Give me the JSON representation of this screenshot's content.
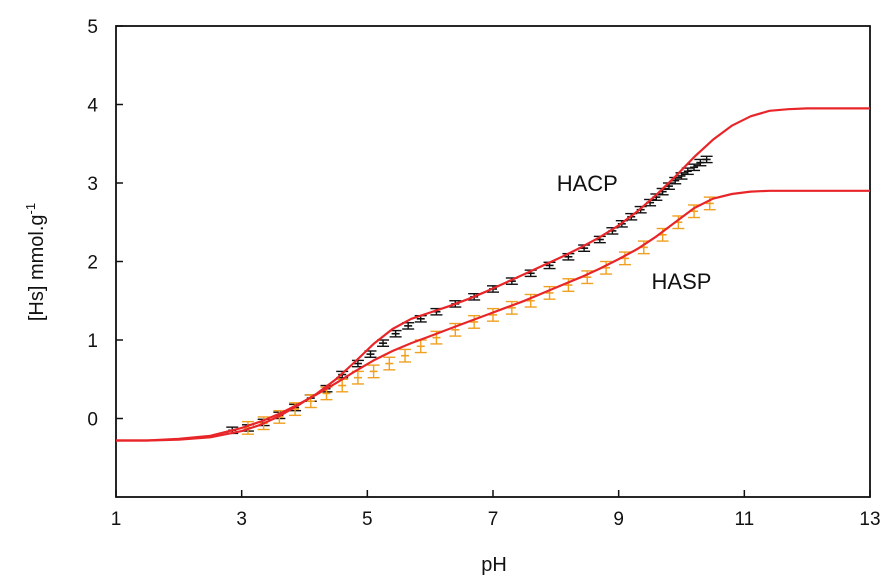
{
  "chart_data": {
    "type": "line",
    "title": "",
    "xlabel": "pH",
    "ylabel": "[Hs] mmol.g",
    "ylabel_superscript": "-1",
    "xlim": [
      1,
      13
    ],
    "ylim": [
      -1,
      5
    ],
    "xticks": [
      "1",
      "3",
      "5",
      "7",
      "9",
      "11",
      "13"
    ],
    "yticks": [
      "0",
      "1",
      "2",
      "3",
      "4",
      "5"
    ],
    "grid": false,
    "legend": "none",
    "annotations": [
      {
        "text": "HACP",
        "x": 8.5,
        "y": 3.0
      },
      {
        "text": "HASP",
        "x": 10.0,
        "y": 1.75
      }
    ],
    "colors": {
      "fit": "#e8262a",
      "hacp_data": "#111111",
      "hasp_data": "#f0a020",
      "axis": "#111111"
    },
    "series": [
      {
        "key": "hacp_fit",
        "kind": "line",
        "x": [
          1.0,
          1.5,
          2.0,
          2.5,
          3.0,
          3.3,
          3.6,
          3.9,
          4.2,
          4.5,
          4.8,
          5.1,
          5.4,
          5.7,
          6.0,
          6.3,
          6.6,
          6.9,
          7.2,
          7.5,
          7.8,
          8.1,
          8.4,
          8.7,
          9.0,
          9.3,
          9.6,
          9.9,
          10.2,
          10.5,
          10.8,
          11.1,
          11.4,
          11.7,
          12.0,
          12.5,
          13.0
        ],
        "y": [
          -0.28,
          -0.28,
          -0.27,
          -0.24,
          -0.16,
          -0.08,
          0.03,
          0.17,
          0.32,
          0.5,
          0.72,
          0.95,
          1.14,
          1.27,
          1.35,
          1.43,
          1.52,
          1.62,
          1.73,
          1.84,
          1.95,
          2.06,
          2.18,
          2.31,
          2.46,
          2.64,
          2.85,
          3.08,
          3.33,
          3.55,
          3.73,
          3.85,
          3.92,
          3.94,
          3.95,
          3.95,
          3.95
        ]
      },
      {
        "key": "hasp_fit",
        "kind": "line",
        "x": [
          1.0,
          1.5,
          2.0,
          2.5,
          3.0,
          3.3,
          3.6,
          3.9,
          4.2,
          4.5,
          4.8,
          5.1,
          5.4,
          5.7,
          6.0,
          6.3,
          6.6,
          6.9,
          7.2,
          7.5,
          7.8,
          8.1,
          8.4,
          8.7,
          9.0,
          9.3,
          9.6,
          9.9,
          10.2,
          10.5,
          10.8,
          11.1,
          11.4,
          11.7,
          12.0,
          12.5,
          13.0
        ],
        "y": [
          -0.28,
          -0.28,
          -0.26,
          -0.22,
          -0.12,
          -0.04,
          0.06,
          0.18,
          0.31,
          0.45,
          0.6,
          0.74,
          0.86,
          0.96,
          1.05,
          1.14,
          1.23,
          1.32,
          1.41,
          1.5,
          1.6,
          1.7,
          1.8,
          1.91,
          2.03,
          2.16,
          2.32,
          2.5,
          2.68,
          2.8,
          2.86,
          2.89,
          2.9,
          2.9,
          2.9,
          2.9,
          2.9
        ]
      },
      {
        "key": "hacp_data",
        "kind": "errorbars",
        "err": 0.04,
        "x": [
          2.85,
          3.1,
          3.35,
          3.6,
          3.85,
          4.1,
          4.35,
          4.6,
          4.85,
          5.05,
          5.25,
          5.45,
          5.65,
          5.85,
          6.1,
          6.4,
          6.7,
          7.0,
          7.3,
          7.6,
          7.9,
          8.2,
          8.45,
          8.7,
          8.9,
          9.05,
          9.2,
          9.35,
          9.5,
          9.6,
          9.7,
          9.8,
          9.9,
          10.0,
          10.1,
          10.2,
          10.3,
          10.4
        ],
        "y": [
          -0.15,
          -0.12,
          -0.05,
          0.04,
          0.14,
          0.26,
          0.38,
          0.56,
          0.7,
          0.82,
          0.96,
          1.08,
          1.18,
          1.27,
          1.36,
          1.46,
          1.55,
          1.65,
          1.75,
          1.85,
          1.95,
          2.06,
          2.17,
          2.28,
          2.39,
          2.48,
          2.57,
          2.66,
          2.75,
          2.82,
          2.89,
          2.96,
          3.03,
          3.09,
          3.15,
          3.2,
          3.26,
          3.3
        ]
      },
      {
        "key": "hasp_data",
        "kind": "errorbars",
        "err": 0.08,
        "x": [
          3.1,
          3.35,
          3.6,
          3.85,
          4.1,
          4.35,
          4.6,
          4.85,
          5.1,
          5.35,
          5.6,
          5.85,
          6.1,
          6.4,
          6.7,
          7.0,
          7.3,
          7.6,
          7.9,
          8.2,
          8.5,
          8.8,
          9.1,
          9.4,
          9.7,
          9.95,
          10.2,
          10.45
        ],
        "y": [
          -0.12,
          -0.06,
          0.02,
          0.12,
          0.22,
          0.32,
          0.42,
          0.52,
          0.6,
          0.7,
          0.8,
          0.92,
          1.03,
          1.13,
          1.23,
          1.32,
          1.41,
          1.5,
          1.6,
          1.7,
          1.8,
          1.92,
          2.04,
          2.18,
          2.34,
          2.5,
          2.64,
          2.74
        ]
      }
    ]
  }
}
